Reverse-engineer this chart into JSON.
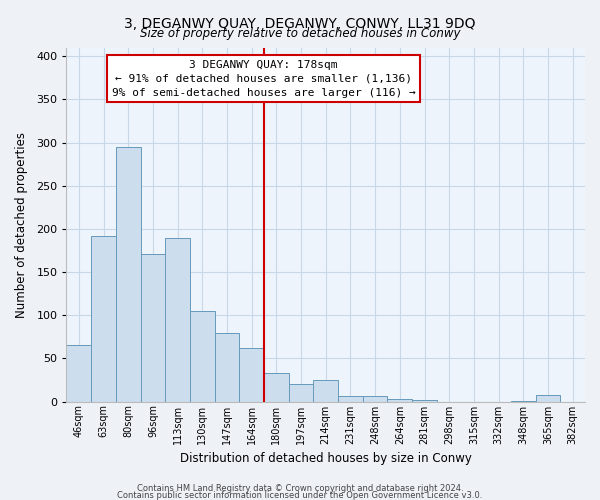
{
  "title": "3, DEGANWY QUAY, DEGANWY, CONWY, LL31 9DQ",
  "subtitle": "Size of property relative to detached houses in Conwy",
  "xlabel": "Distribution of detached houses by size in Conwy",
  "ylabel": "Number of detached properties",
  "bar_labels": [
    "46sqm",
    "63sqm",
    "80sqm",
    "96sqm",
    "113sqm",
    "130sqm",
    "147sqm",
    "164sqm",
    "180sqm",
    "197sqm",
    "214sqm",
    "231sqm",
    "248sqm",
    "264sqm",
    "281sqm",
    "298sqm",
    "315sqm",
    "332sqm",
    "348sqm",
    "365sqm",
    "382sqm"
  ],
  "bar_heights": [
    65,
    192,
    295,
    171,
    190,
    105,
    80,
    62,
    33,
    21,
    25,
    6,
    7,
    3,
    2,
    0,
    0,
    0,
    1,
    8,
    0
  ],
  "bar_color": "#ccdded",
  "bar_edge_color": "#6699bb",
  "vline_color": "#cc0000",
  "vline_index": 8,
  "annotation_line1": "3 DEGANWY QUAY: 178sqm",
  "annotation_line2": "← 91% of detached houses are smaller (1,136)",
  "annotation_line3": "9% of semi-detached houses are larger (116) →",
  "ylim": [
    0,
    410
  ],
  "yticks": [
    0,
    50,
    100,
    150,
    200,
    250,
    300,
    350,
    400
  ],
  "footer_line1": "Contains HM Land Registry data © Crown copyright and database right 2024.",
  "footer_line2": "Contains public sector information licensed under the Open Government Licence v3.0.",
  "bg_color": "#eef2f7",
  "plot_bg_color": "#eef4fb",
  "grid_color": "#c8d8e8"
}
